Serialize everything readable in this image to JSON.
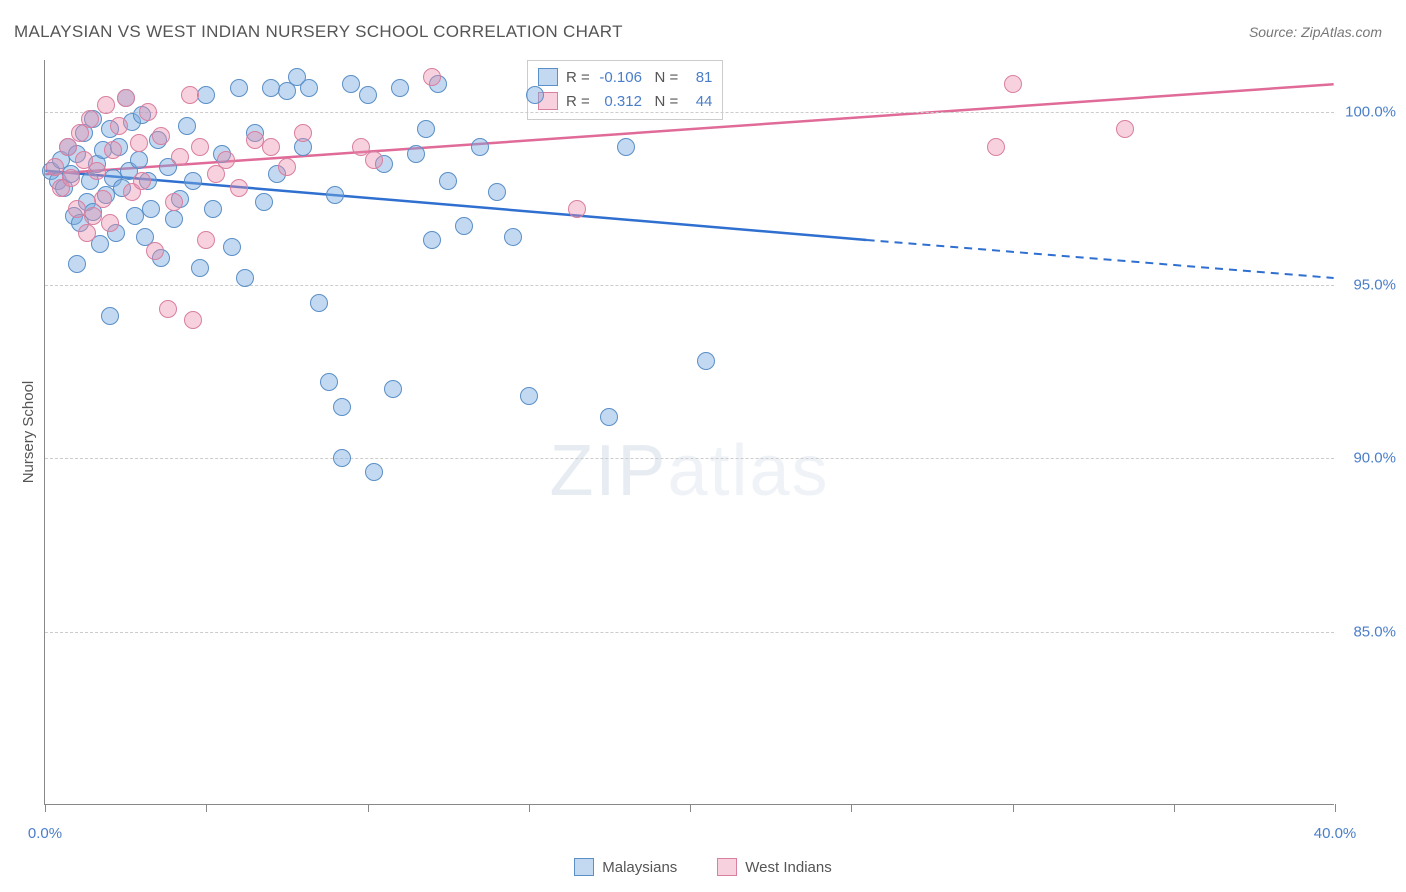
{
  "title": "MALAYSIAN VS WEST INDIAN NURSERY SCHOOL CORRELATION CHART",
  "source": "Source: ZipAtlas.com",
  "watermark_bold": "ZIP",
  "watermark_thin": "atlas",
  "chart": {
    "type": "scatter",
    "y_label": "Nursery School",
    "x_range": [
      0,
      40
    ],
    "y_range": [
      80,
      101.5
    ],
    "x_ticks": [
      0,
      5,
      10,
      15,
      20,
      25,
      30,
      35,
      40
    ],
    "x_tick_labels": {
      "0": "0.0%",
      "40": "40.0%"
    },
    "y_gridlines": [
      85,
      90,
      95,
      100
    ],
    "y_tick_labels": {
      "85": "85.0%",
      "90": "90.0%",
      "95": "95.0%",
      "100": "100.0%"
    },
    "grid_color": "#cccccc",
    "axis_color": "#888888",
    "label_color": "#555555",
    "tick_label_color": "#4a7ec9",
    "background_color": "#ffffff",
    "point_radius": 9,
    "series": [
      {
        "name": "Malaysians",
        "fill_color": "rgba(120,170,225,0.45)",
        "stroke_color": "#5a8fc7",
        "trend_color": "#2f6fd0",
        "trend": {
          "x_start": 0,
          "y_start": 98.3,
          "x_solid_end": 25.5,
          "y_solid_end": 96.3,
          "x_dash_end": 40,
          "y_dash_end": 95.2
        },
        "R": "-0.106",
        "N": "81",
        "points": [
          [
            0.2,
            98.3
          ],
          [
            0.4,
            98.0
          ],
          [
            0.5,
            98.6
          ],
          [
            0.6,
            97.8
          ],
          [
            0.7,
            99.0
          ],
          [
            0.8,
            98.2
          ],
          [
            0.9,
            97.0
          ],
          [
            1.0,
            98.8
          ],
          [
            1.0,
            95.6
          ],
          [
            1.1,
            96.8
          ],
          [
            1.2,
            99.4
          ],
          [
            1.3,
            97.4
          ],
          [
            1.4,
            98.0
          ],
          [
            1.5,
            97.1
          ],
          [
            1.5,
            99.8
          ],
          [
            1.6,
            98.5
          ],
          [
            1.7,
            96.2
          ],
          [
            1.8,
            98.9
          ],
          [
            1.9,
            97.6
          ],
          [
            2.0,
            99.5
          ],
          [
            2.0,
            94.1
          ],
          [
            2.1,
            98.1
          ],
          [
            2.2,
            96.5
          ],
          [
            2.3,
            99.0
          ],
          [
            2.4,
            97.8
          ],
          [
            2.5,
            100.4
          ],
          [
            2.6,
            98.3
          ],
          [
            2.7,
            99.7
          ],
          [
            2.8,
            97.0
          ],
          [
            2.9,
            98.6
          ],
          [
            3.0,
            99.9
          ],
          [
            3.1,
            96.4
          ],
          [
            3.2,
            98.0
          ],
          [
            3.3,
            97.2
          ],
          [
            3.5,
            99.2
          ],
          [
            3.6,
            95.8
          ],
          [
            3.8,
            98.4
          ],
          [
            4.0,
            96.9
          ],
          [
            4.2,
            97.5
          ],
          [
            4.4,
            99.6
          ],
          [
            4.6,
            98.0
          ],
          [
            4.8,
            95.5
          ],
          [
            5.0,
            100.5
          ],
          [
            5.2,
            97.2
          ],
          [
            5.5,
            98.8
          ],
          [
            5.8,
            96.1
          ],
          [
            6.0,
            100.7
          ],
          [
            6.2,
            95.2
          ],
          [
            6.5,
            99.4
          ],
          [
            6.8,
            97.4
          ],
          [
            7.0,
            100.7
          ],
          [
            7.2,
            98.2
          ],
          [
            7.5,
            100.6
          ],
          [
            7.8,
            101.0
          ],
          [
            8.0,
            99.0
          ],
          [
            8.2,
            100.7
          ],
          [
            8.5,
            94.5
          ],
          [
            8.8,
            92.2
          ],
          [
            9.0,
            97.6
          ],
          [
            9.2,
            91.5
          ],
          [
            9.5,
            100.8
          ],
          [
            9.2,
            90.0
          ],
          [
            10.0,
            100.5
          ],
          [
            10.2,
            89.6
          ],
          [
            10.5,
            98.5
          ],
          [
            10.8,
            92.0
          ],
          [
            11.0,
            100.7
          ],
          [
            11.5,
            98.8
          ],
          [
            11.8,
            99.5
          ],
          [
            12.0,
            96.3
          ],
          [
            12.2,
            100.8
          ],
          [
            12.5,
            98.0
          ],
          [
            13.0,
            96.7
          ],
          [
            13.5,
            99.0
          ],
          [
            14.0,
            97.7
          ],
          [
            14.5,
            96.4
          ],
          [
            15.0,
            91.8
          ],
          [
            15.2,
            100.5
          ],
          [
            17.5,
            91.2
          ],
          [
            18.0,
            99.0
          ],
          [
            20.5,
            92.8
          ]
        ]
      },
      {
        "name": "West Indians",
        "fill_color": "rgba(235,140,170,0.40)",
        "stroke_color": "#d97fa0",
        "trend_color": "#e06a98",
        "trend": {
          "x_start": 0,
          "y_start": 98.2,
          "x_solid_end": 40,
          "y_solid_end": 100.8,
          "x_dash_end": 40,
          "y_dash_end": 100.8
        },
        "R": "0.312",
        "N": "44",
        "points": [
          [
            0.3,
            98.4
          ],
          [
            0.5,
            97.8
          ],
          [
            0.7,
            99.0
          ],
          [
            0.8,
            98.1
          ],
          [
            1.0,
            97.2
          ],
          [
            1.1,
            99.4
          ],
          [
            1.2,
            98.6
          ],
          [
            1.3,
            96.5
          ],
          [
            1.4,
            99.8
          ],
          [
            1.5,
            97.0
          ],
          [
            1.6,
            98.3
          ],
          [
            1.8,
            97.5
          ],
          [
            1.9,
            100.2
          ],
          [
            2.0,
            96.8
          ],
          [
            2.1,
            98.9
          ],
          [
            2.3,
            99.6
          ],
          [
            2.5,
            100.4
          ],
          [
            2.7,
            97.7
          ],
          [
            2.9,
            99.1
          ],
          [
            3.0,
            98.0
          ],
          [
            3.2,
            100.0
          ],
          [
            3.4,
            96.0
          ],
          [
            3.6,
            99.3
          ],
          [
            3.8,
            94.3
          ],
          [
            4.0,
            97.4
          ],
          [
            4.2,
            98.7
          ],
          [
            4.5,
            100.5
          ],
          [
            4.6,
            94.0
          ],
          [
            4.8,
            99.0
          ],
          [
            5.0,
            96.3
          ],
          [
            5.3,
            98.2
          ],
          [
            5.6,
            98.6
          ],
          [
            6.0,
            97.8
          ],
          [
            6.5,
            99.2
          ],
          [
            7.0,
            99.0
          ],
          [
            7.5,
            98.4
          ],
          [
            8.0,
            99.4
          ],
          [
            9.8,
            99.0
          ],
          [
            10.2,
            98.6
          ],
          [
            12.0,
            101.0
          ],
          [
            16.5,
            97.2
          ],
          [
            29.5,
            99.0
          ],
          [
            30.0,
            100.8
          ],
          [
            33.5,
            99.5
          ]
        ]
      }
    ]
  },
  "legend": {
    "items": [
      {
        "label": "Malaysians",
        "fill": "rgba(120,170,225,0.45)",
        "stroke": "#5a8fc7"
      },
      {
        "label": "West Indians",
        "fill": "rgba(235,140,170,0.40)",
        "stroke": "#d97fa0"
      }
    ]
  }
}
